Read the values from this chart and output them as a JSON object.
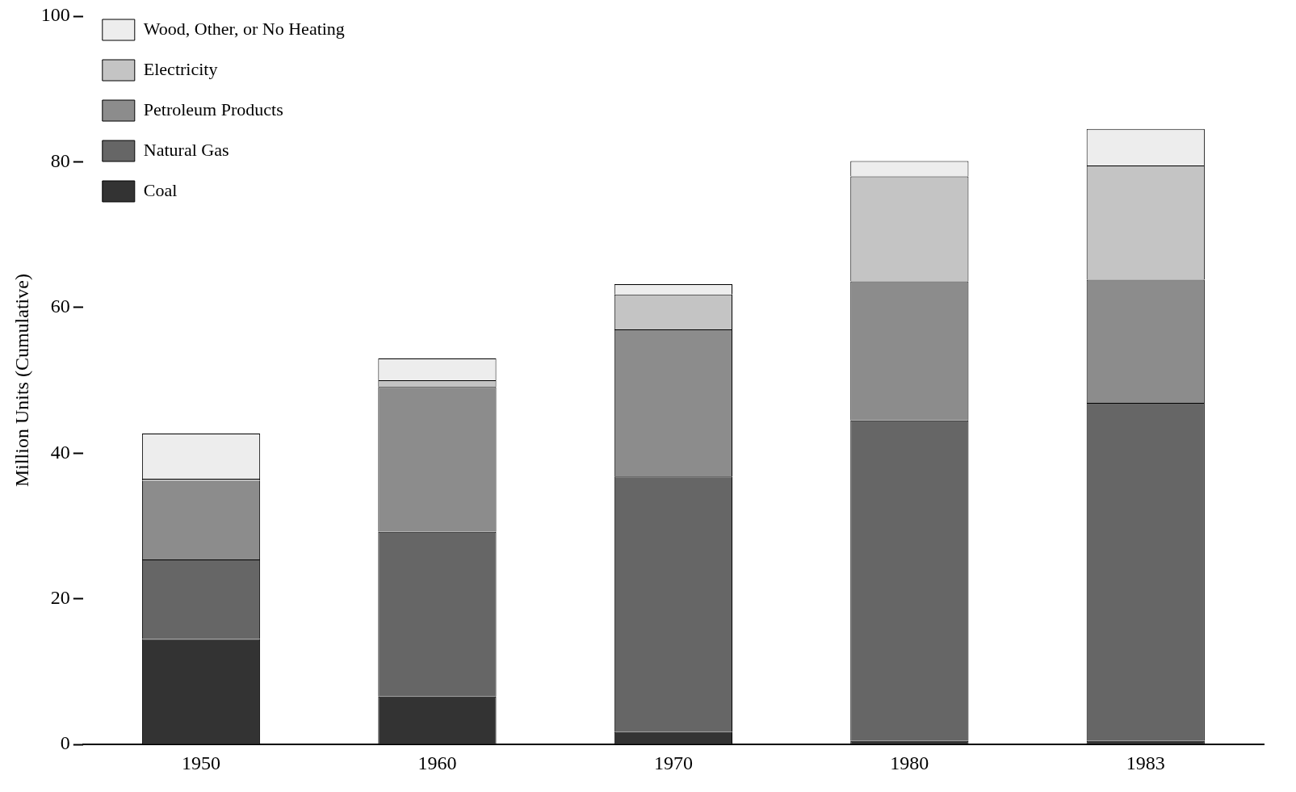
{
  "chart_data": {
    "type": "bar",
    "stacked": true,
    "ylabel": "Million Units (Cumulative)",
    "categories": [
      "1950",
      "1960",
      "1970",
      "1980",
      "1983"
    ],
    "series": [
      {
        "name": "Coal",
        "color": "#333333",
        "values": [
          14.5,
          6.6,
          1.7,
          0.5,
          0.5
        ]
      },
      {
        "name": "Natural Gas",
        "color": "#666666",
        "values": [
          10.9,
          22.6,
          35.1,
          44.0,
          46.4
        ]
      },
      {
        "name": "Petroleum Products",
        "color": "#8c8c8c",
        "values": [
          10.8,
          19.9,
          20.2,
          19.1,
          16.9
        ]
      },
      {
        "name": "Electricity",
        "color": "#c4c4c4",
        "values": [
          0.3,
          0.9,
          4.8,
          14.4,
          15.7
        ]
      },
      {
        "name": "Wood, Other, or No Heating",
        "color": "#ededed",
        "values": [
          6.2,
          3.0,
          1.4,
          2.1,
          5.0
        ]
      }
    ],
    "ylim": [
      0,
      100
    ],
    "yticks": [
      0,
      20,
      40,
      60,
      80,
      100
    ],
    "grid": false,
    "legend": "top left"
  }
}
